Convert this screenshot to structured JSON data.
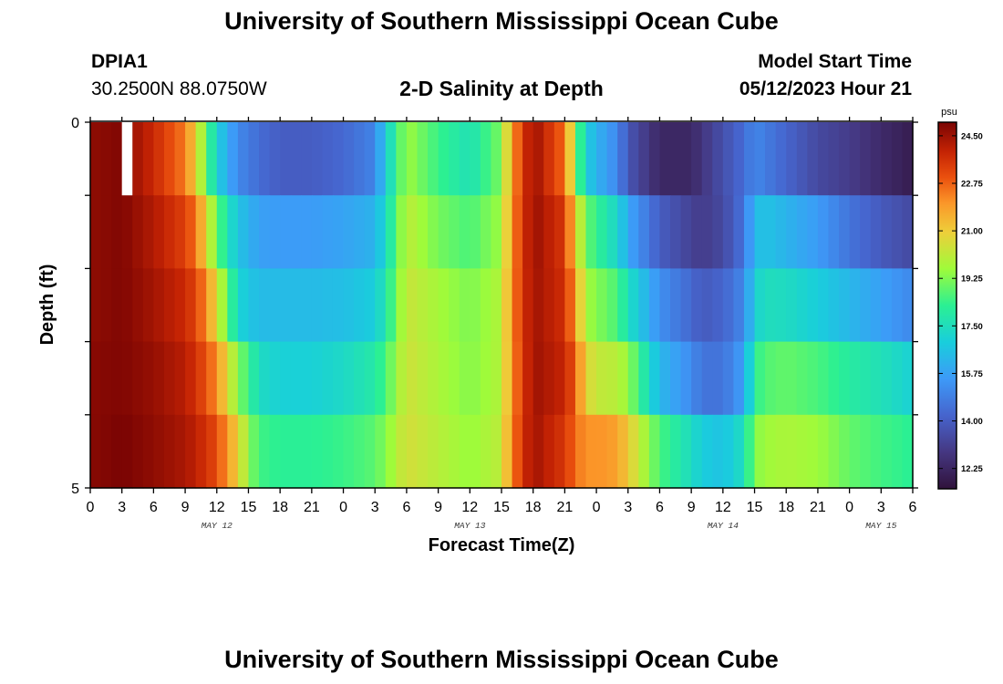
{
  "header": {
    "title_top": "University of Southern Mississippi Ocean Cube",
    "station_id": "DPIA1",
    "coords": "30.2500N  88.0750W",
    "plot_title": "2-D Salinity at Depth",
    "model_start_label": "Model Start Time",
    "model_start_value": "05/12/2023 Hour 21",
    "title_bottom": "University of Southern Mississippi Ocean Cube"
  },
  "chart_data": {
    "type": "heatmap",
    "title": "2-D Salinity at Depth",
    "xlabel": "Forecast Time(Z)",
    "ylabel": "Depth (ft)",
    "x_tick_labels": [
      "0",
      "3",
      "6",
      "9",
      "12",
      "15",
      "18",
      "21",
      "0",
      "3",
      "6",
      "9",
      "12",
      "15",
      "18",
      "21",
      "0",
      "3",
      "6",
      "9",
      "12",
      "15",
      "18",
      "21",
      "0",
      "3",
      "6"
    ],
    "x_start_hour": 0,
    "x_step_hours": 3,
    "month_labels": [
      {
        "text": "MAY 12",
        "hour": 12
      },
      {
        "text": "MAY 13",
        "hour": 36
      },
      {
        "text": "MAY 14",
        "hour": 60
      },
      {
        "text": "MAY 15",
        "hour": 75
      }
    ],
    "xlim": [
      0,
      78
    ],
    "ylim": [
      0,
      5
    ],
    "y_tick_labels": [
      "0",
      "5"
    ],
    "depth_levels_ft": [
      0,
      1,
      2,
      3,
      4,
      5
    ],
    "missing_data": [
      {
        "hour": 3.5,
        "depth_band": 0
      }
    ],
    "colorbar": {
      "unit": "psu",
      "min": 11.5,
      "max": 25.0,
      "tick_values": [
        12.25,
        14.0,
        15.75,
        17.5,
        19.25,
        21.0,
        22.75,
        24.5
      ],
      "tick_labels": [
        "12.25",
        "14.00",
        "15.75",
        "17.50",
        "19.25",
        "21.00",
        "22.75",
        "24.50"
      ]
    },
    "salinity_knots_hours": [
      0,
      3,
      6,
      9,
      10,
      11,
      12,
      14,
      15,
      16,
      18,
      21,
      24,
      27,
      28,
      30,
      33,
      36,
      39,
      40,
      42,
      43,
      45,
      46,
      47,
      48,
      50,
      51,
      54,
      57,
      58,
      60,
      62,
      63,
      64,
      66,
      69,
      72,
      75,
      78
    ],
    "salinity_psu": [
      [
        24.7,
        24.9,
        23.8,
        22.4,
        20.9,
        18.9,
        17.0,
        15.1,
        14.8,
        14.4,
        14.0,
        14.0,
        14.3,
        15.0,
        16.9,
        19.6,
        18.4,
        17.6,
        19.2,
        22.0,
        24.6,
        23.9,
        22.6,
        19.5,
        16.9,
        16.2,
        15.1,
        13.8,
        12.3,
        12.3,
        12.8,
        13.6,
        14.4,
        15.1,
        14.8,
        14.2,
        13.4,
        13.0,
        12.4,
        11.9
      ],
      [
        24.7,
        24.9,
        24.2,
        23.3,
        22.5,
        20.8,
        18.9,
        16.6,
        16.2,
        15.7,
        15.6,
        15.6,
        15.8,
        16.2,
        17.3,
        20.1,
        19.1,
        18.6,
        19.6,
        22.2,
        24.6,
        24.2,
        23.5,
        21.0,
        19.0,
        18.3,
        17.2,
        15.9,
        14.0,
        13.2,
        13.0,
        13.4,
        14.6,
        16.4,
        16.6,
        16.2,
        15.6,
        14.6,
        13.9,
        13.4
      ],
      [
        24.7,
        24.9,
        24.4,
        23.8,
        23.2,
        22.2,
        20.6,
        17.2,
        16.7,
        16.4,
        16.4,
        16.4,
        16.5,
        16.9,
        17.8,
        20.3,
        19.7,
        19.2,
        19.9,
        22.3,
        24.5,
        24.2,
        23.7,
        21.9,
        19.7,
        19.3,
        18.6,
        17.5,
        15.3,
        14.3,
        13.9,
        14.2,
        15.1,
        17.0,
        17.5,
        17.4,
        16.9,
        16.3,
        15.7,
        15.1
      ],
      [
        24.8,
        24.9,
        24.6,
        24.1,
        23.6,
        23.0,
        22.1,
        19.3,
        18.4,
        17.4,
        17.0,
        17.0,
        17.3,
        17.9,
        18.6,
        20.4,
        19.8,
        19.3,
        19.9,
        22.2,
        24.5,
        24.3,
        23.9,
        22.8,
        20.8,
        20.2,
        20.0,
        19.5,
        16.3,
        15.2,
        14.6,
        14.6,
        15.7,
        18.2,
        18.7,
        18.9,
        18.6,
        18.0,
        17.6,
        17.0
      ],
      [
        24.8,
        25.0,
        24.7,
        24.3,
        24.0,
        23.6,
        23.1,
        20.9,
        19.4,
        18.5,
        18.2,
        18.2,
        18.4,
        18.8,
        19.3,
        20.5,
        20.0,
        19.5,
        20.1,
        22.4,
        24.5,
        24.1,
        23.5,
        22.6,
        22.0,
        22.1,
        21.8,
        21.0,
        18.6,
        17.4,
        16.9,
        16.6,
        17.5,
        19.3,
        19.6,
        19.8,
        19.6,
        18.9,
        18.5,
        18.2
      ],
      [
        24.8,
        25.0,
        24.8,
        24.6,
        24.4,
        24.1,
        23.7,
        22.1,
        20.9,
        19.6,
        19.3,
        19.0,
        18.8,
        18.9,
        19.3,
        20.6,
        20.3,
        19.9,
        20.6,
        23.0,
        24.7,
        24.6,
        24.4,
        24.3,
        23.6,
        23.4,
        23.0,
        21.5,
        18.7,
        17.5,
        16.5,
        15.8,
        15.5,
        20.4,
        21.9,
        21.7,
        20.8,
        19.8,
        19.1,
        18.6
      ]
    ]
  }
}
